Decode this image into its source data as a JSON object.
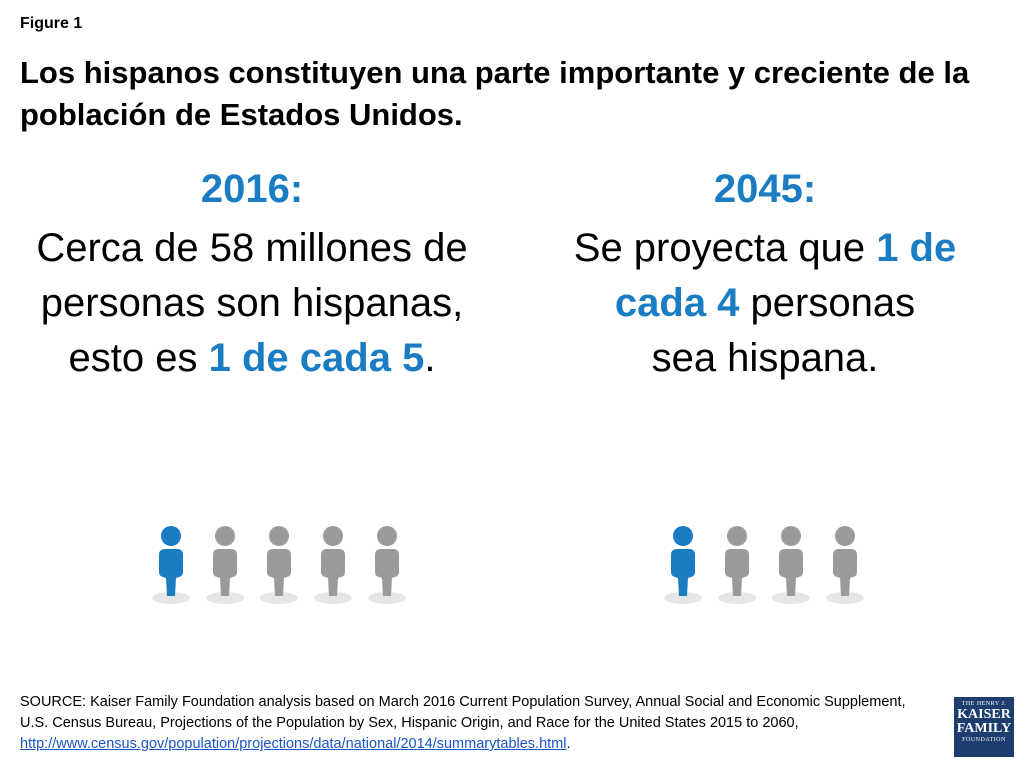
{
  "figure_label": "Figure 1",
  "title": "Los hispanos constituyen una parte importante y creciente de la población de Estados Unidos.",
  "left": {
    "year": "2016:",
    "line1": "Cerca de 58 millones de",
    "line2": "personas son hispanas,",
    "line3_pre": "esto es ",
    "line3_hl": "1 de cada 5",
    "line3_post": "."
  },
  "right": {
    "year": "2045:",
    "line1_pre": "Se proyecta que ",
    "line1_hl": "1 de",
    "line2_hl": "cada 4",
    "line2_post": " personas",
    "line3": "sea hispana."
  },
  "source": {
    "text": "SOURCE: Kaiser Family Foundation analysis based on March 2016 Current Population Survey, Annual Social and Economic Supplement, U.S. Census Bureau, Projections of the Population by Sex, Hispanic Origin, and Race for the United States 2015 to 2060, ",
    "link": "http://www.census.gov/population/projections/data/national/2014/summarytables.html",
    "end": "."
  },
  "logo": {
    "line1": "THE HENRY J.",
    "line2a": "KAISER",
    "line2b": "FAMILY",
    "line3": "FOUNDATION"
  },
  "colors": {
    "highlight": "#1a7dc4",
    "person_highlight": "#1a7dc4",
    "person_other": "#9a9a9c",
    "shadow": "#e6e6e6"
  },
  "chart_data": [
    {
      "type": "pictograph",
      "label": "2016",
      "total": 5,
      "highlighted": 1
    },
    {
      "type": "pictograph",
      "label": "2045",
      "total": 4,
      "highlighted": 1
    }
  ]
}
